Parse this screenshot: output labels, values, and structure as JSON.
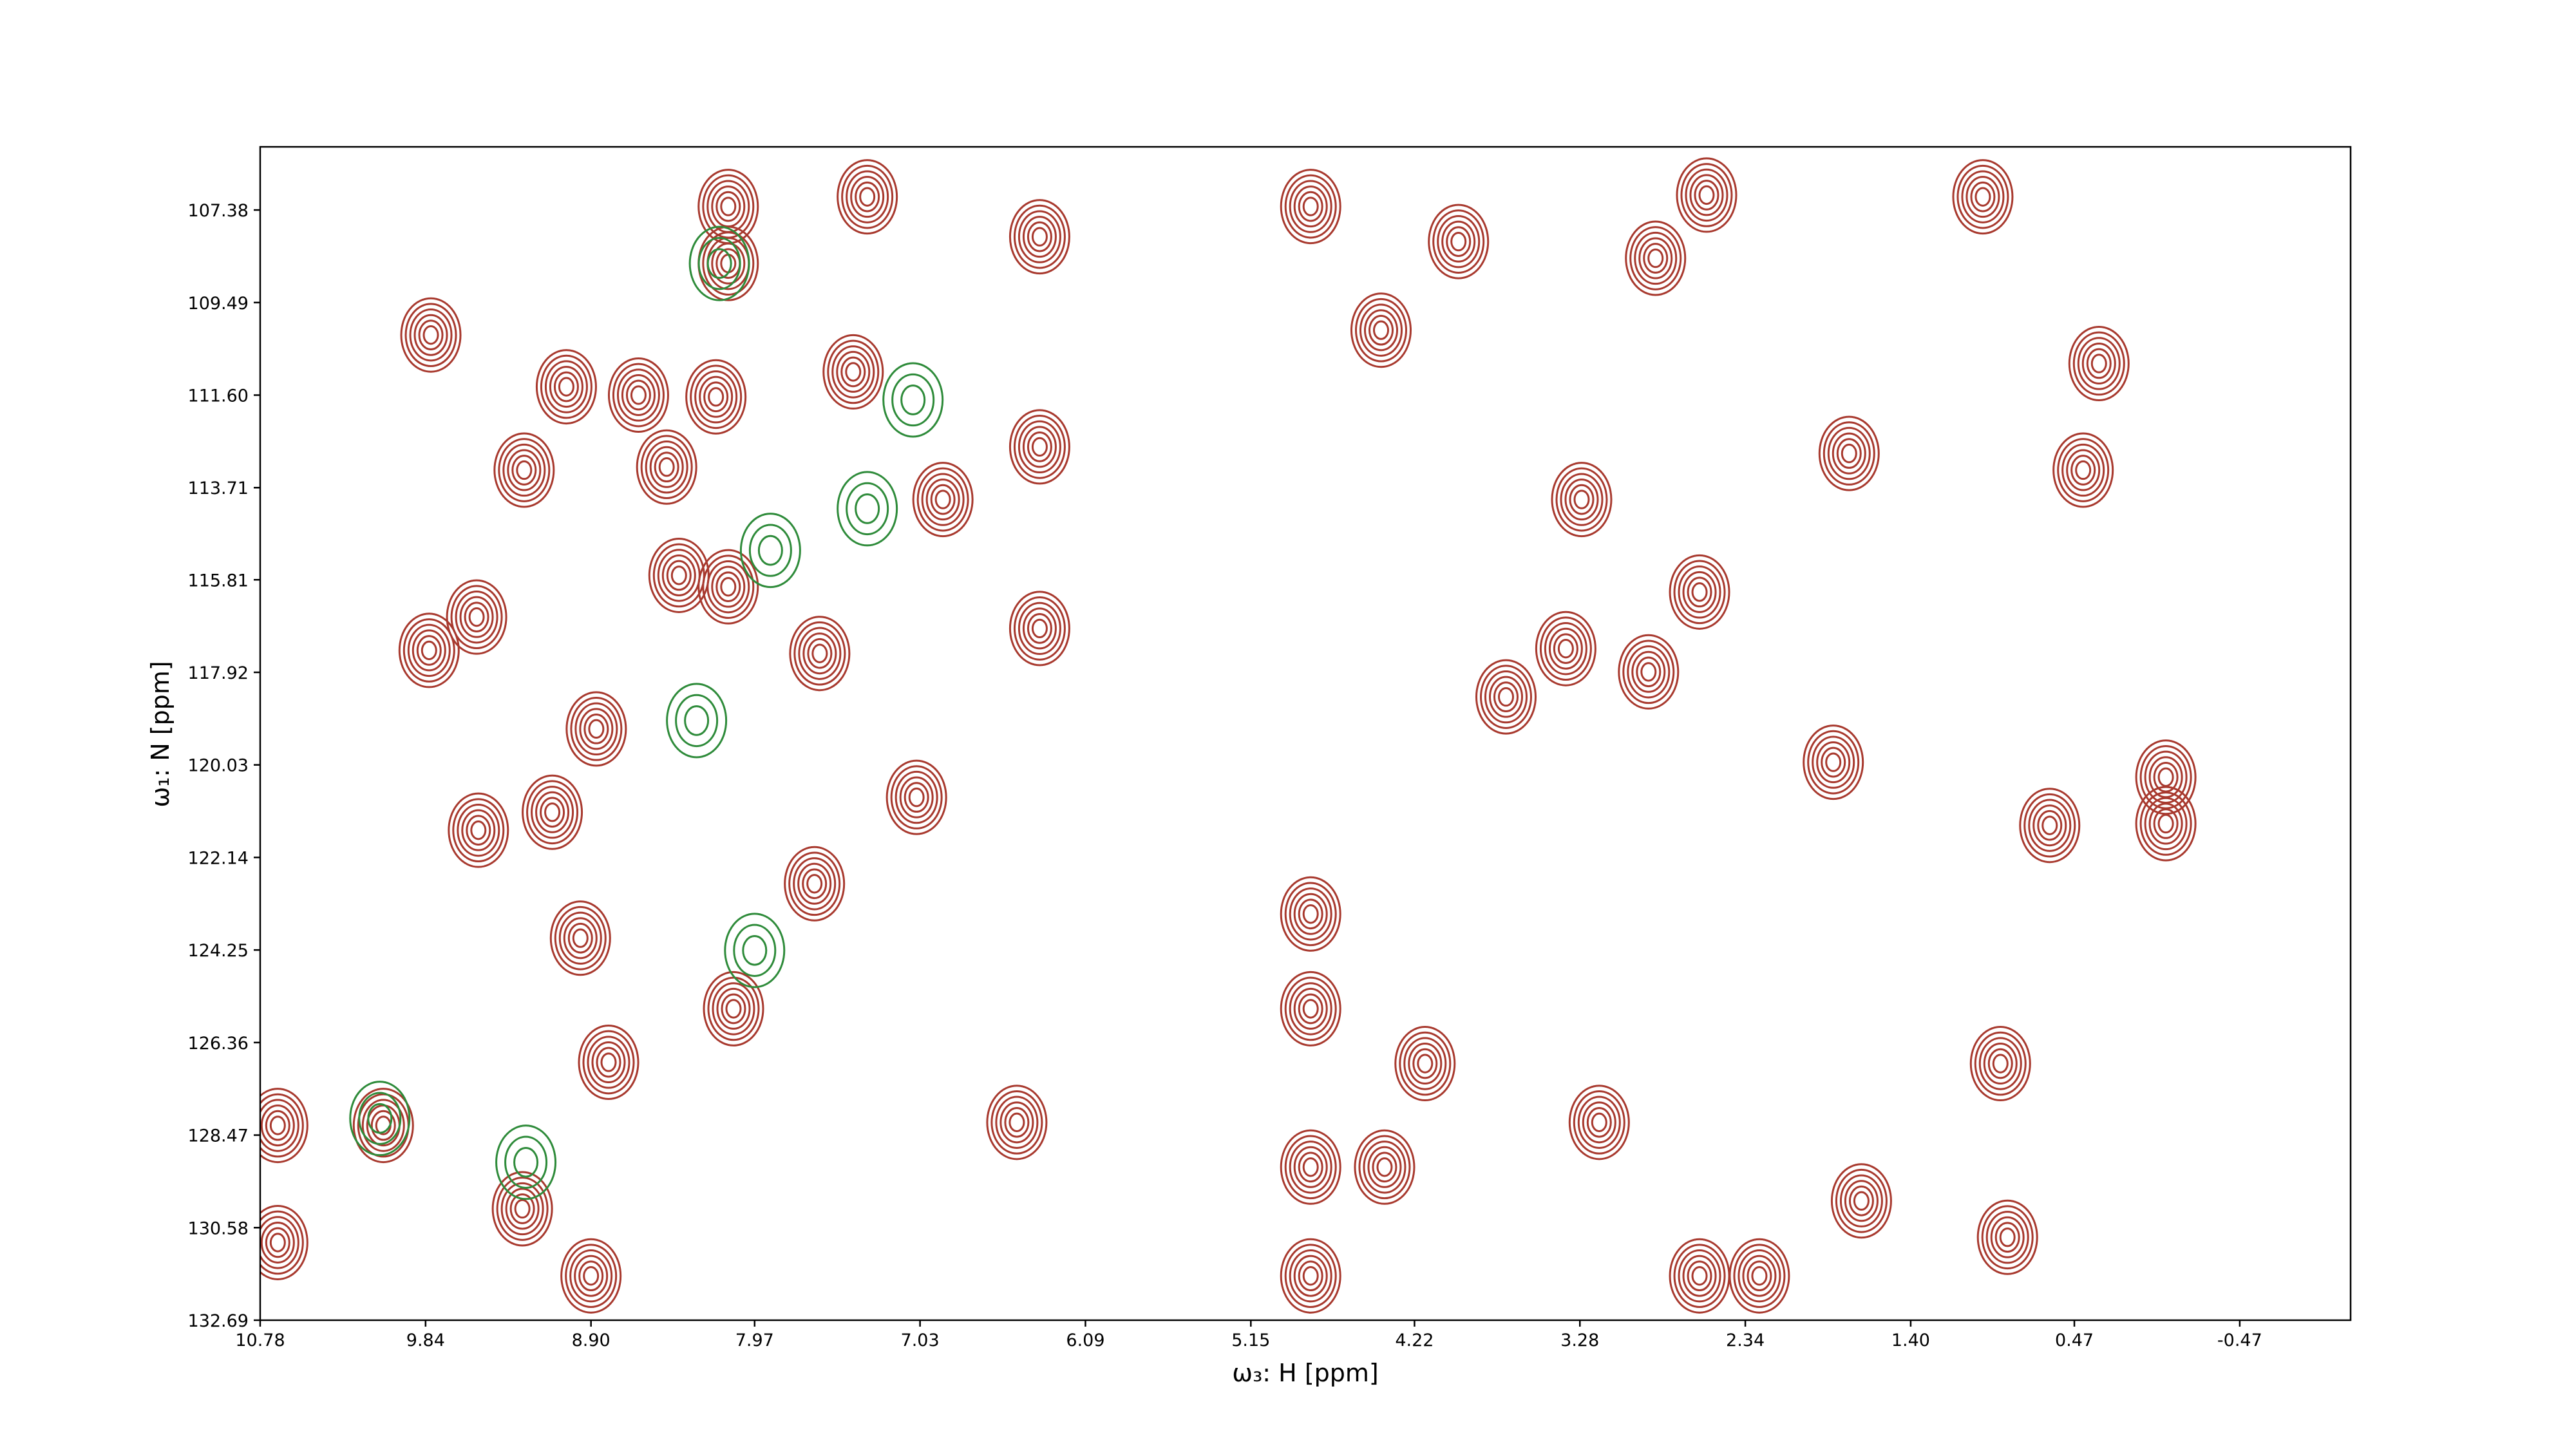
{
  "chart_data": {
    "type": "contour",
    "x_label": "ω₃: H [ppm]",
    "y_label": "ω₁: N [ppm]",
    "xlim": [
      10.78,
      -1.1
    ],
    "ylim": [
      132.69,
      105.94
    ],
    "xticks": [
      10.78,
      9.84,
      {
        "value": 8.9,
        "label": "8.90"
      },
      7.97,
      7.03,
      6.09,
      5.15,
      4.22,
      3.28,
      2.34,
      {
        "value": 1.4,
        "label": "1.40"
      },
      0.47,
      -0.47
    ],
    "yticks": [
      107.38,
      109.49,
      {
        "value": 111.6,
        "label": "111.60"
      },
      113.71,
      115.81,
      117.92,
      120.03,
      122.14,
      124.25,
      126.36,
      128.47,
      130.58,
      132.69
    ],
    "series": [
      {
        "color": "#a8392e",
        "x": [
          8.12,
          8.12,
          7.33,
          6.35,
          4.81,
          9.81,
          9.04,
          8.63,
          8.19,
          7.41,
          4.41,
          8.47,
          9.28,
          6.9,
          6.35,
          8.4,
          8.12,
          9.55,
          9.82,
          7.6,
          6.35,
          3.36,
          2.89,
          8.87,
          7.05,
          9.54,
          9.12,
          7.63,
          8.96,
          4.81,
          -0.05,
          -0.05,
          0.61,
          8.09,
          4.81,
          8.8,
          4.16,
          0.89,
          10.68,
          10.08,
          6.48,
          3.17,
          4.81,
          4.39,
          9.29,
          10.68,
          8.9,
          4.81,
          2.6,
          2.26,
          0.85,
          1.68,
          1.75,
          2.56,
          0.99,
          0.42,
          0.33,
          2.6,
          1.84,
          3.7,
          3.27,
          3.97,
          2.85
        ],
        "y": [
          107.3,
          108.6,
          107.08,
          107.99,
          107.3,
          110.23,
          111.41,
          111.6,
          111.64,
          111.07,
          110.12,
          113.24,
          113.31,
          113.98,
          112.78,
          115.71,
          115.97,
          116.66,
          117.42,
          117.49,
          116.92,
          117.38,
          117.91,
          119.21,
          120.77,
          121.52,
          121.11,
          122.74,
          123.98,
          123.43,
          120.31,
          121.37,
          121.41,
          125.59,
          125.59,
          126.81,
          126.84,
          126.84,
          128.25,
          128.25,
          128.18,
          128.18,
          129.2,
          129.2,
          130.15,
          130.92,
          131.68,
          131.68,
          131.68,
          131.68,
          130.8,
          129.97,
          112.93,
          107.04,
          107.08,
          113.31,
          110.88,
          116.09,
          119.97,
          118.48,
          113.98,
          108.1,
          108.48
        ]
      },
      {
        "color": "#2e8b3a",
        "x": [
          8.17,
          7.07,
          7.33,
          10.1,
          9.27,
          8.3,
          7.97,
          7.88
        ],
        "y": [
          108.6,
          111.71,
          114.19,
          128.09,
          129.09,
          119.02,
          124.26,
          115.14
        ]
      }
    ]
  }
}
